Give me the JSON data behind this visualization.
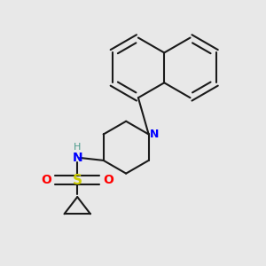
{
  "background_color": "#e8e8e8",
  "bond_color": "#1a1a1a",
  "N_color": "#0000ff",
  "S_color": "#cccc00",
  "O_color": "#ff0000",
  "H_color": "#4a9a8a",
  "line_width": 1.5,
  "figsize": [
    3.0,
    3.0
  ],
  "dpi": 100,
  "xlim": [
    0.0,
    1.0
  ],
  "ylim": [
    0.05,
    1.05
  ]
}
